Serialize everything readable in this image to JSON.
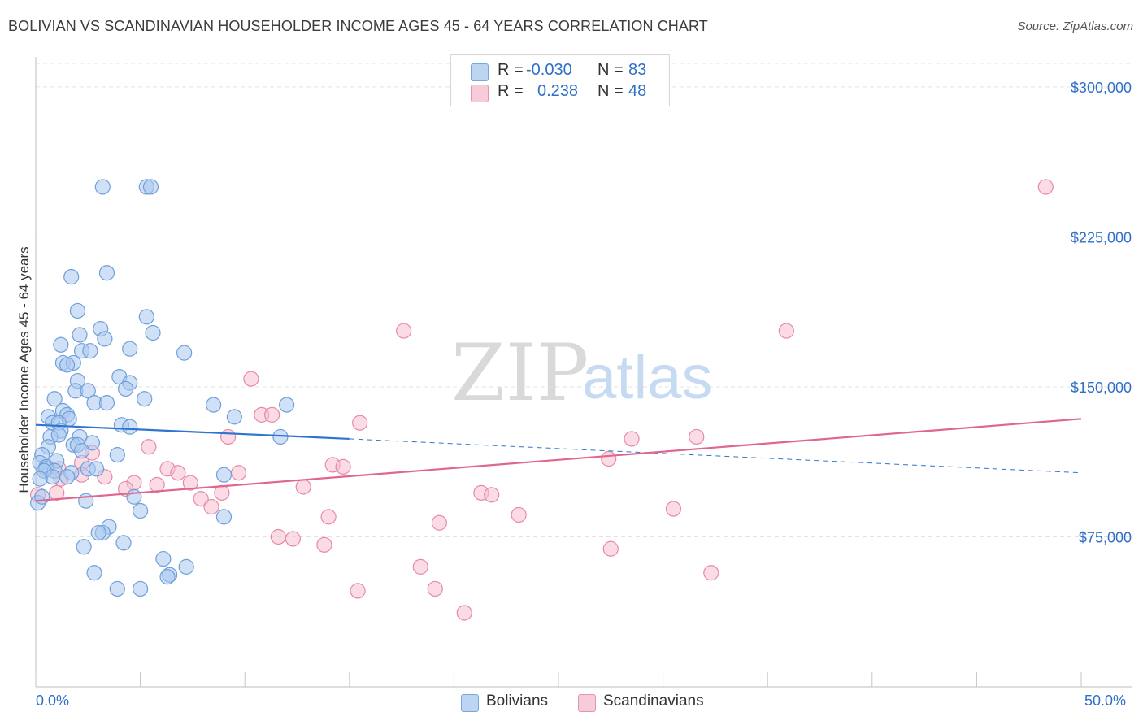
{
  "title": "BOLIVIAN VS SCANDINAVIAN HOUSEHOLDER INCOME AGES 45 - 64 YEARS CORRELATION CHART",
  "source": "Source: ZipAtlas.com",
  "watermark": {
    "zip": "ZIP",
    "atlas": "atlas"
  },
  "legend": {
    "rows": [
      {
        "r_label": "R =",
        "r_value": "-0.030",
        "n_label": "N =",
        "n_value": "83",
        "color": "#a9c8f0"
      },
      {
        "r_label": "R =",
        "r_value": "0.238",
        "n_label": "N =",
        "n_value": "48",
        "color": "#f6b8cb"
      }
    ]
  },
  "bottom_legend": [
    "Bolivians",
    "Scandinavians"
  ],
  "colors": {
    "blue_fill": "#aac9f0",
    "blue_stroke": "#6f9fd8",
    "blue_line": "#2f74d0",
    "pink_fill": "#f7bfd0",
    "pink_stroke": "#e58aa8",
    "pink_line": "#e0668f",
    "axis_text": "#2f6fc8",
    "grid": "#e3e3e3"
  },
  "chart_data": {
    "type": "scatter",
    "title": "BOLIVIAN VS SCANDINAVIAN HOUSEHOLDER INCOME AGES 45 - 64 YEARS CORRELATION CHART",
    "xlabel": "",
    "ylabel": "Householder Income Ages 45 - 64 years",
    "xlim": [
      0,
      50
    ],
    "ylim": [
      0,
      315000
    ],
    "x_tick_labels": [
      "0.0%",
      "50.0%"
    ],
    "y_ticks": [
      75000,
      150000,
      225000,
      300000
    ],
    "y_tick_labels": [
      "$75,000",
      "$150,000",
      "$225,000",
      "$300,000"
    ],
    "series": [
      {
        "name": "Bolivians",
        "R": -0.03,
        "N": 83,
        "trend": {
          "x0": 0,
          "y0": 131000,
          "x1": 15,
          "y1": 124000,
          "x_ext": 50,
          "y_ext": 107000
        },
        "points": [
          [
            3.2,
            250000
          ],
          [
            5.3,
            250000
          ],
          [
            5.5,
            250000
          ],
          [
            1.7,
            205000
          ],
          [
            3.4,
            207000
          ],
          [
            2.0,
            188000
          ],
          [
            5.3,
            185000
          ],
          [
            3.1,
            179000
          ],
          [
            2.1,
            176000
          ],
          [
            5.6,
            177000
          ],
          [
            3.3,
            174000
          ],
          [
            1.2,
            171000
          ],
          [
            2.2,
            168000
          ],
          [
            2.6,
            168000
          ],
          [
            4.5,
            169000
          ],
          [
            7.1,
            167000
          ],
          [
            1.3,
            162000
          ],
          [
            1.8,
            162000
          ],
          [
            1.5,
            161000
          ],
          [
            4.0,
            155000
          ],
          [
            2.0,
            153000
          ],
          [
            4.5,
            152000
          ],
          [
            4.3,
            149000
          ],
          [
            1.9,
            148000
          ],
          [
            2.5,
            148000
          ],
          [
            0.9,
            144000
          ],
          [
            5.2,
            144000
          ],
          [
            2.8,
            142000
          ],
          [
            3.4,
            142000
          ],
          [
            8.5,
            141000
          ],
          [
            12.0,
            141000
          ],
          [
            1.3,
            138000
          ],
          [
            1.5,
            136000
          ],
          [
            0.6,
            135000
          ],
          [
            1.6,
            134000
          ],
          [
            9.5,
            135000
          ],
          [
            0.8,
            132000
          ],
          [
            1.1,
            132000
          ],
          [
            4.1,
            131000
          ],
          [
            4.5,
            130000
          ],
          [
            1.2,
            128000
          ],
          [
            0.7,
            125000
          ],
          [
            1.1,
            126000
          ],
          [
            2.1,
            125000
          ],
          [
            11.7,
            125000
          ],
          [
            1.8,
            121000
          ],
          [
            2.0,
            121000
          ],
          [
            2.7,
            122000
          ],
          [
            0.6,
            120000
          ],
          [
            2.2,
            118000
          ],
          [
            3.9,
            116000
          ],
          [
            0.3,
            116000
          ],
          [
            1.0,
            113000
          ],
          [
            0.2,
            112000
          ],
          [
            0.5,
            110000
          ],
          [
            0.5,
            109000
          ],
          [
            0.9,
            108000
          ],
          [
            2.5,
            109000
          ],
          [
            2.9,
            109000
          ],
          [
            0.4,
            108000
          ],
          [
            1.7,
            107000
          ],
          [
            0.8,
            105000
          ],
          [
            0.2,
            104000
          ],
          [
            1.5,
            105000
          ],
          [
            9.0,
            106000
          ],
          [
            4.7,
            95000
          ],
          [
            2.4,
            93000
          ],
          [
            5.0,
            88000
          ],
          [
            9.0,
            85000
          ],
          [
            3.5,
            80000
          ],
          [
            3.2,
            77000
          ],
          [
            3.0,
            77000
          ],
          [
            4.2,
            72000
          ],
          [
            2.3,
            70000
          ],
          [
            6.1,
            64000
          ],
          [
            7.2,
            60000
          ],
          [
            2.8,
            57000
          ],
          [
            6.4,
            56000
          ],
          [
            6.3,
            55000
          ],
          [
            3.9,
            49000
          ],
          [
            5.0,
            49000
          ],
          [
            0.1,
            92000
          ],
          [
            0.3,
            95000
          ]
        ]
      },
      {
        "name": "Scandinavians",
        "R": 0.238,
        "N": 48,
        "trend": {
          "x0": 0,
          "y0": 93000,
          "x1": 50,
          "y1": 134000
        },
        "points": [
          [
            48.3,
            250000
          ],
          [
            17.6,
            178000
          ],
          [
            35.9,
            178000
          ],
          [
            10.3,
            154000
          ],
          [
            10.8,
            136000
          ],
          [
            11.3,
            136000
          ],
          [
            15.5,
            132000
          ],
          [
            31.6,
            125000
          ],
          [
            28.5,
            124000
          ],
          [
            9.2,
            125000
          ],
          [
            5.4,
            120000
          ],
          [
            2.7,
            117000
          ],
          [
            27.4,
            114000
          ],
          [
            14.2,
            111000
          ],
          [
            2.2,
            112000
          ],
          [
            14.7,
            110000
          ],
          [
            1.1,
            109000
          ],
          [
            6.3,
            109000
          ],
          [
            9.7,
            107000
          ],
          [
            6.8,
            107000
          ],
          [
            2.2,
            106000
          ],
          [
            3.3,
            105000
          ],
          [
            1.2,
            104000
          ],
          [
            7.4,
            102000
          ],
          [
            4.7,
            102000
          ],
          [
            5.8,
            101000
          ],
          [
            12.8,
            100000
          ],
          [
            4.3,
            99000
          ],
          [
            8.9,
            97000
          ],
          [
            21.3,
            97000
          ],
          [
            21.8,
            96000
          ],
          [
            7.9,
            94000
          ],
          [
            8.4,
            90000
          ],
          [
            30.5,
            89000
          ],
          [
            14.0,
            85000
          ],
          [
            23.1,
            86000
          ],
          [
            19.3,
            82000
          ],
          [
            11.6,
            75000
          ],
          [
            12.3,
            74000
          ],
          [
            13.8,
            71000
          ],
          [
            27.5,
            69000
          ],
          [
            18.4,
            60000
          ],
          [
            32.3,
            57000
          ],
          [
            19.1,
            49000
          ],
          [
            15.4,
            48000
          ],
          [
            20.5,
            37000
          ],
          [
            1.0,
            97000
          ],
          [
            0.1,
            96000
          ]
        ]
      }
    ]
  }
}
